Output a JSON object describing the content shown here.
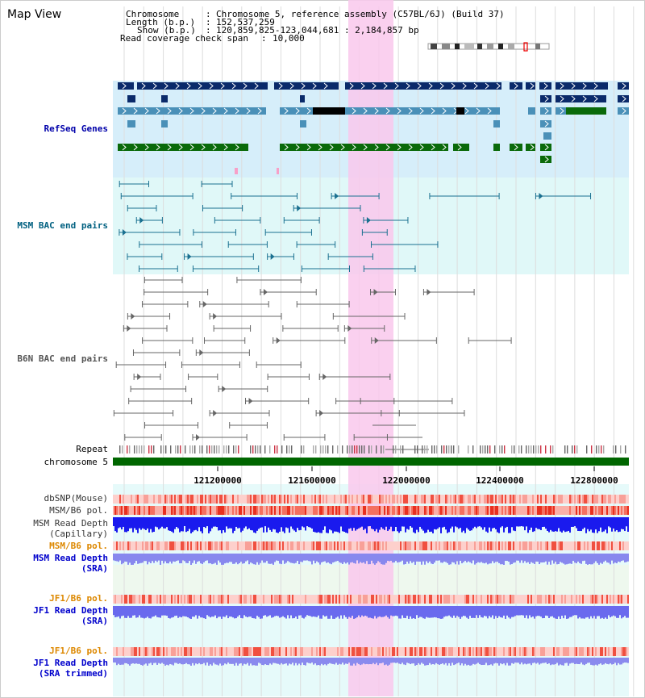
{
  "view_title": "Map View",
  "header": {
    "chromosome_label": "Chromosome",
    "chromosome_value": "Chromosome 5, reference assembly (C57BL/6J) (Build 37)",
    "length_label": "Length (b.p.)",
    "length_value": "152,537,259",
    "show_label": "Show (b.p.)",
    "show_value": "120,859,825-123,044,681 : 2,184,857 bp",
    "coverage_label": "Read coverage check span",
    "coverage_value": "10,000"
  },
  "tracks": {
    "refseq": "RefSeq Genes",
    "msm_bac": "MSM BAC end pairs",
    "b6n_bac": "B6N BAC end pairs",
    "repeat": "Repeat",
    "chromosome": "chromosome 5",
    "dbsnp": "dbSNP(Mouse)",
    "msm_b6_pol_1": "MSM/B6 pol.",
    "msm_depth_cap_1": "MSM Read Depth",
    "msm_depth_cap_2": "(Capillary)",
    "msm_b6_pol_2": "MSM/B6 pol.",
    "msm_depth_sra_1": "MSM Read Depth",
    "msm_depth_sra_2": "(SRA)",
    "jf1_b6_pol_1": "JF1/B6 pol.",
    "jf1_depth_sra_1": "JF1 Read Depth",
    "jf1_depth_sra_2": "(SRA)",
    "jf1_b6_pol_2": "JF1/B6 pol.",
    "jf1_depth_trim_1": "JF1 Read Depth",
    "jf1_depth_trim_2": "(SRA trimmed)"
  },
  "axis_ticks": [
    "121200000",
    "121600000",
    "122000000",
    "122400000",
    "122800000"
  ],
  "colors": {
    "refseq_label": "#0000aa",
    "msm_label": "#006080",
    "b6n_label": "#555555",
    "pol_label": "#dd8800",
    "depth_label": "#0000cc",
    "highlight": "#f9c8ec",
    "refseq_bg": "#d6eefa",
    "msm_bg": "#e0f8f8",
    "grid": "#dddddd",
    "gene_navy": "#0a2a6a",
    "gene_blue": "#4a90b8",
    "gene_green": "#0a6a0a",
    "chrom_bar": "#006600"
  }
}
